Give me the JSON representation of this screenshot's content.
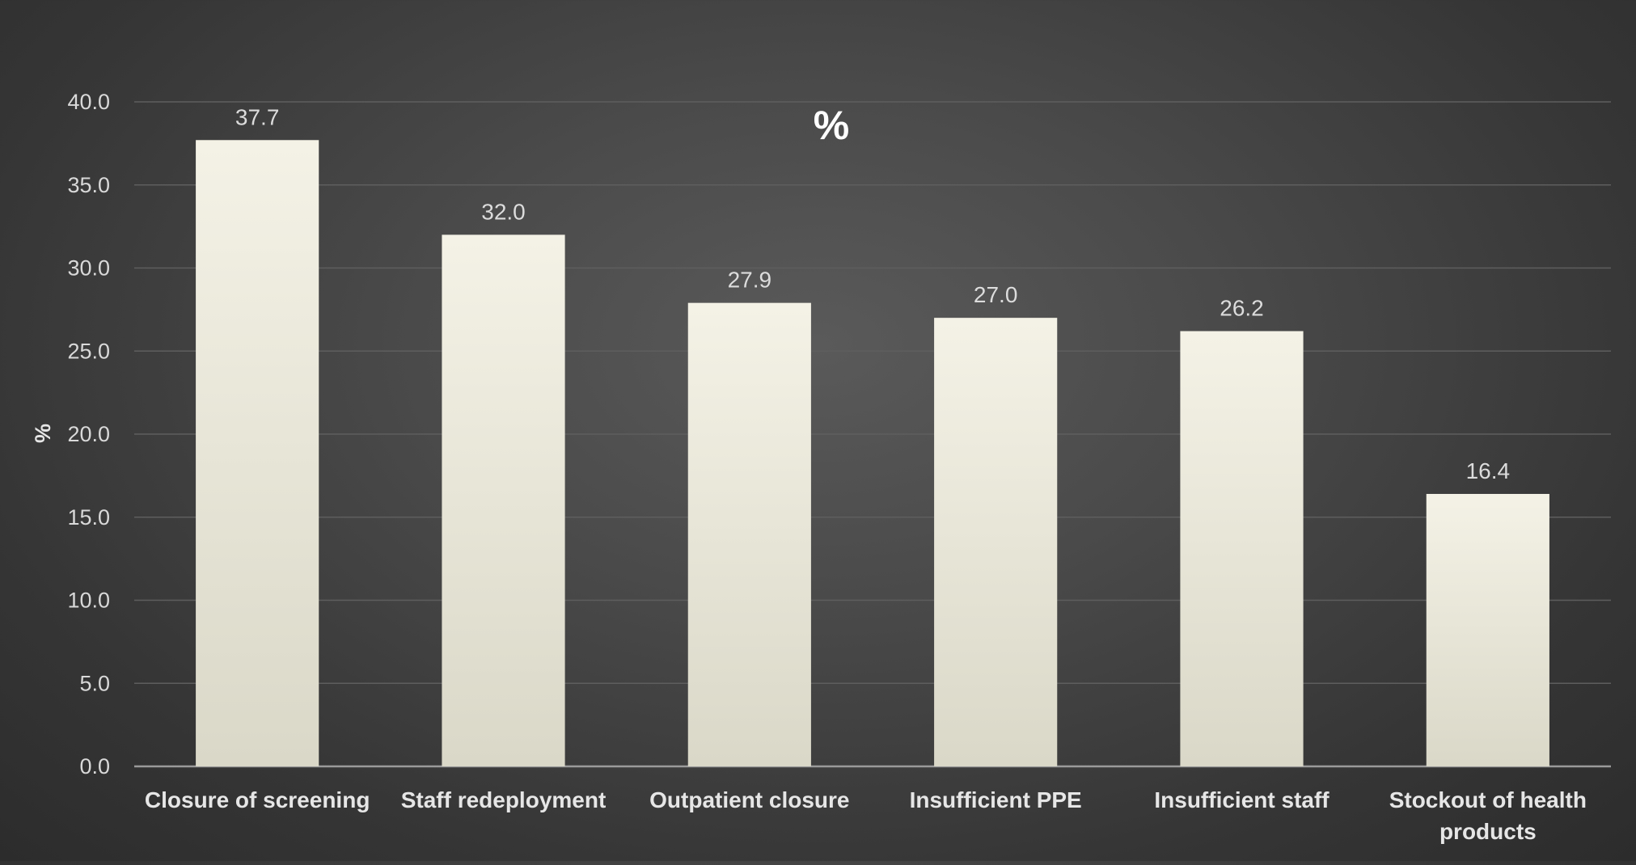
{
  "chart_data": {
    "type": "bar",
    "title": "%",
    "xlabel": "",
    "ylabel": "%",
    "categories": [
      [
        "Closure of screening"
      ],
      [
        "Staff redeployment"
      ],
      [
        "Outpatient closure"
      ],
      [
        "Insufficient PPE"
      ],
      [
        "Insufficient staff"
      ],
      [
        "Stockout of health",
        "products"
      ]
    ],
    "values": [
      37.7,
      32.0,
      27.9,
      27.0,
      26.2,
      16.4
    ],
    "ylim": [
      0,
      40
    ],
    "yticks": [
      "0.0",
      "5.0",
      "10.0",
      "15.0",
      "20.0",
      "25.0",
      "30.0",
      "35.0",
      "40.0"
    ],
    "grid": true,
    "legend": "none",
    "colors": {
      "bar_top": "#f4f2e6",
      "bar_bottom": "#dad8c8",
      "grid": "#5e5e5e",
      "axis": "#9a9a9a"
    }
  }
}
